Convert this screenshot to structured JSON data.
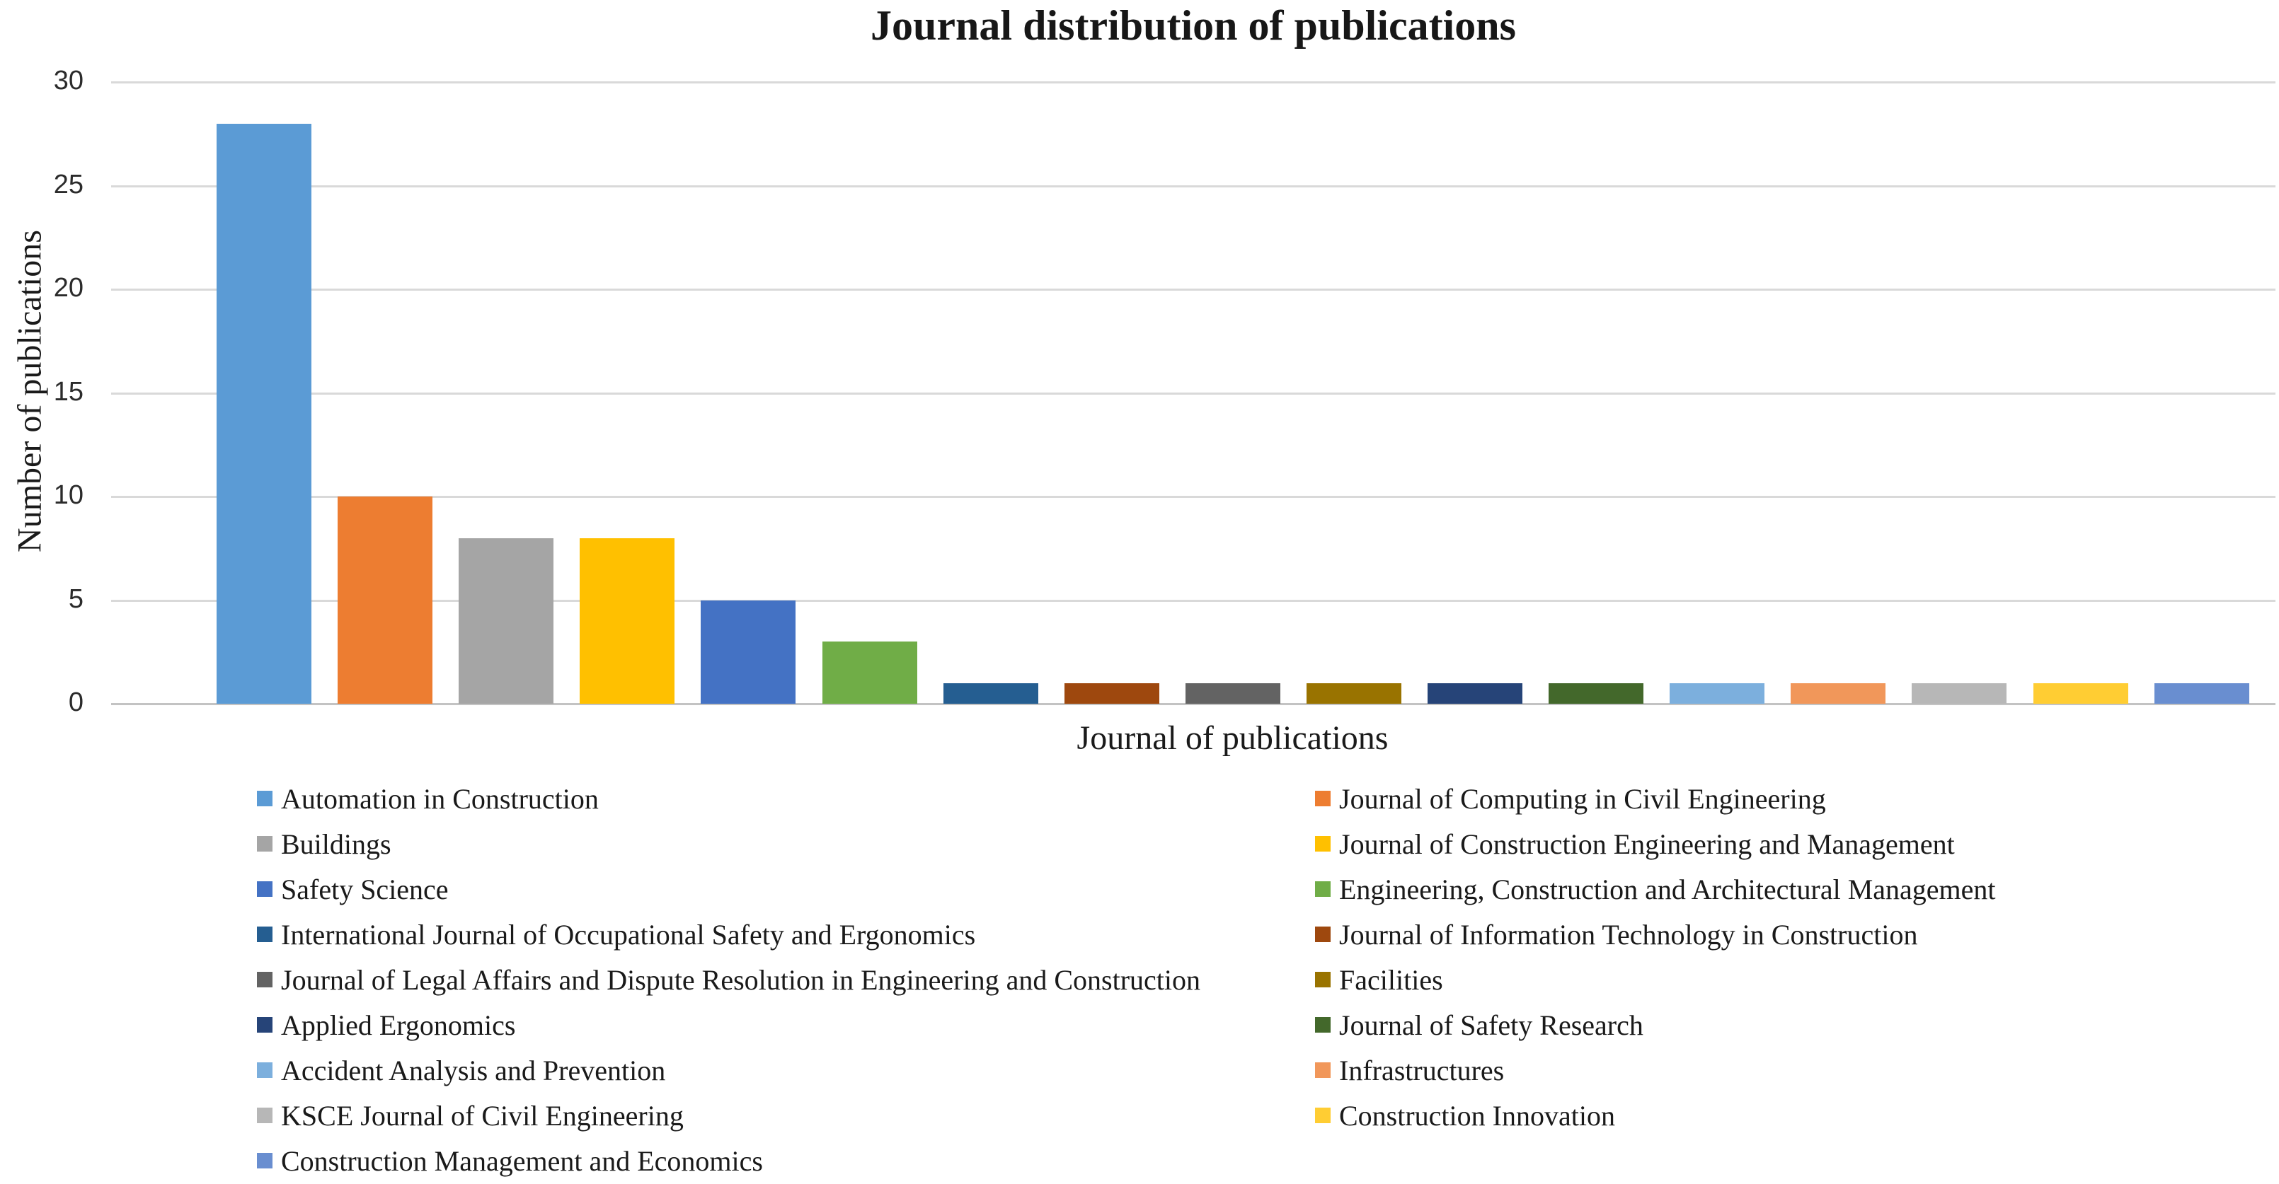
{
  "chart_data": {
    "type": "bar",
    "title": "Journal distribution of publications",
    "xlabel": "Journal of publications",
    "ylabel": "Number of publications",
    "ylim": [
      0,
      30
    ],
    "yticks": [
      0,
      5,
      10,
      15,
      20,
      25,
      30
    ],
    "grid": true,
    "legend_position": "bottom",
    "legend_columns": 2,
    "background_color": "#ffffff",
    "gridline_color": "#d9d9d9",
    "series": [
      {
        "name": "Automation in Construction",
        "value": 28,
        "color": "#5B9BD5"
      },
      {
        "name": "Journal of Computing in Civil Engineering",
        "value": 10,
        "color": "#ED7D31"
      },
      {
        "name": "Buildings",
        "value": 8,
        "color": "#A5A5A5"
      },
      {
        "name": "Journal of Construction Engineering and Management",
        "value": 8,
        "color": "#FFC000"
      },
      {
        "name": "Safety Science",
        "value": 5,
        "color": "#4472C4"
      },
      {
        "name": "Engineering, Construction and Architectural Management",
        "value": 3,
        "color": "#70AD47"
      },
      {
        "name": "International Journal of Occupational Safety and Ergonomics",
        "value": 1,
        "color": "#255E91"
      },
      {
        "name": "Journal of Information Technology in Construction",
        "value": 1,
        "color": "#9E480E"
      },
      {
        "name": "Journal of Legal Affairs and Dispute Resolution in Engineering and Construction",
        "value": 1,
        "color": "#636363"
      },
      {
        "name": "Facilities",
        "value": 1,
        "color": "#997300"
      },
      {
        "name": "Applied Ergonomics",
        "value": 1,
        "color": "#264478"
      },
      {
        "name": "Journal of Safety Research",
        "value": 1,
        "color": "#43682B"
      },
      {
        "name": "Accident Analysis and Prevention",
        "value": 1,
        "color": "#7CAFDD"
      },
      {
        "name": "Infrastructures",
        "value": 1,
        "color": "#F1975A"
      },
      {
        "name": "KSCE Journal of Civil Engineering",
        "value": 1,
        "color": "#B7B7B7"
      },
      {
        "name": "Construction Innovation",
        "value": 1,
        "color": "#FFCD33"
      },
      {
        "name": "Construction Management and Economics",
        "value": 1,
        "color": "#698ED0"
      }
    ]
  }
}
